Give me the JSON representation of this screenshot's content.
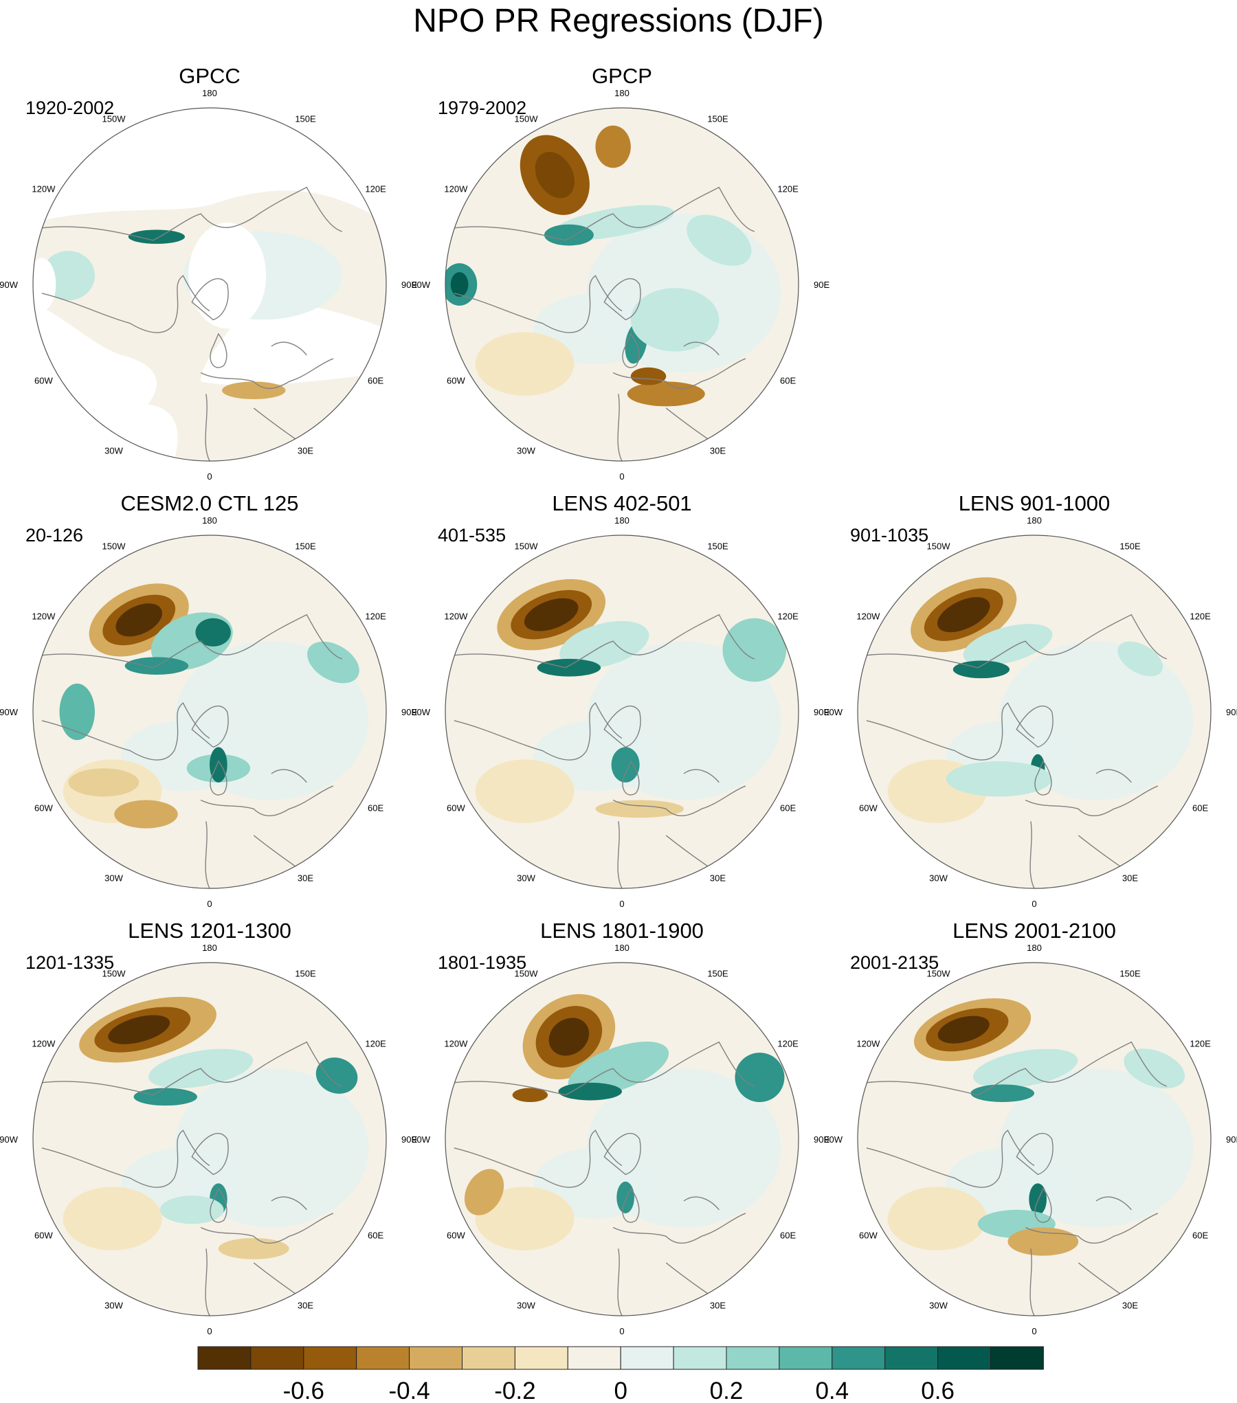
{
  "title": "NPO PR Regressions (DJF)",
  "longitude_labels": [
    "180",
    "150E",
    "120E",
    "90E",
    "60E",
    "30E",
    "0",
    "30W",
    "60W",
    "90W",
    "120W",
    "150W"
  ],
  "panels": [
    {
      "title": "GPCC",
      "period": "1920-2002",
      "ocean_data": false
    },
    {
      "title": "GPCP",
      "period": "1979-2002",
      "ocean_data": true
    },
    {
      "title": "CESM2.0 CTL 125",
      "period": "20-126",
      "ocean_data": true
    },
    {
      "title": "LENS 402-501",
      "period": "401-535",
      "ocean_data": true
    },
    {
      "title": "LENS 901-1000",
      "period": "901-1035",
      "ocean_data": true
    },
    {
      "title": "LENS 1201-1300",
      "period": "1201-1335",
      "ocean_data": true
    },
    {
      "title": "LENS 1801-1900",
      "period": "1801-1935",
      "ocean_data": true
    },
    {
      "title": "LENS 2001-2100",
      "period": "2001-2135",
      "ocean_data": true
    }
  ],
  "colorbar": {
    "colors": [
      "#543005",
      "#7a4706",
      "#955a0c",
      "#ba822d",
      "#d5ab5f",
      "#e8cf95",
      "#f5e6c2",
      "#f5f1e6",
      "#e6f2f0",
      "#c2e8e0",
      "#93d5c8",
      "#5cb8a8",
      "#2f948a",
      "#137567",
      "#04594e",
      "#003c30"
    ],
    "tick_values": [
      "-0.6",
      "-0.4",
      "-0.2",
      "0",
      "0.2",
      "0.4",
      "0.6"
    ]
  },
  "map_colors": {
    "background": "#f5f1e6",
    "coast": "#808080",
    "outline": "#555555",
    "missing": "#ffffff"
  }
}
